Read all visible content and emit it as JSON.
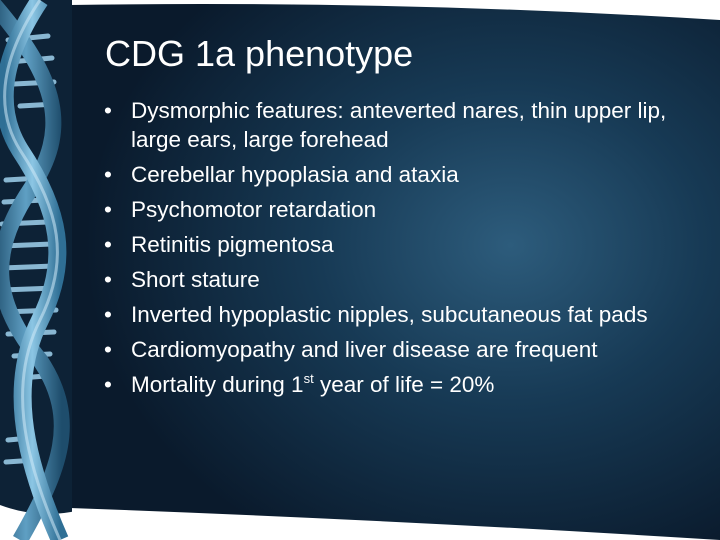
{
  "slide": {
    "title": "CDG 1a phenotype",
    "bullet_symbol": "•",
    "bullets": [
      {
        "text": "Dysmorphic features: anteverted nares, thin upper lip, large ears, large forehead"
      },
      {
        "text": "Cerebellar hypoplasia and ataxia"
      },
      {
        "text": "Psychomotor retardation"
      },
      {
        "text": "Retinitis pigmentosa"
      },
      {
        "text": "Short stature"
      },
      {
        "text": "Inverted hypoplastic nipples, subcutaneous fat pads"
      },
      {
        "text": "Cardiomyopathy and liver disease are frequent"
      },
      {
        "pre": "Mortality during 1",
        "sup": "st",
        "post": " year of life = 20%"
      }
    ]
  },
  "theme": {
    "background_dark": "#0a1a2c",
    "background_light": "#2a5a78",
    "helix_color": "#6aa9cc",
    "text_color": "#ffffff"
  }
}
